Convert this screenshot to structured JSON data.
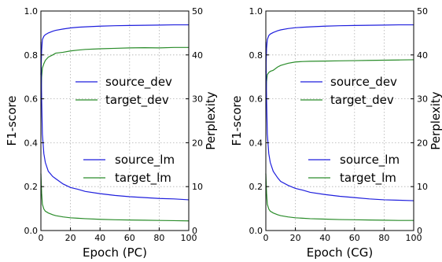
{
  "colors": {
    "blue": "#1f1fdd",
    "green": "#2a8c2a"
  },
  "chart_data": [
    {
      "type": "line",
      "xlabel": "Epoch (PC)",
      "ylabel_left": "F1-score",
      "ylabel_right": "Perplexity",
      "xlim": [
        0,
        100
      ],
      "ylim_left": [
        0.0,
        1.0
      ],
      "ylim_right": [
        0,
        50
      ],
      "x_ticks": [
        "0",
        "20",
        "40",
        "60",
        "80",
        "100"
      ],
      "y_left_ticks": [
        "0.0",
        "0.2",
        "0.4",
        "0.6",
        "0.8",
        "1.0"
      ],
      "y_right_ticks": [
        "0",
        "10",
        "20",
        "30",
        "40",
        "50"
      ],
      "grid": true,
      "legends": [
        {
          "placement": "upper-center",
          "entries": [
            "source_dev",
            "target_dev"
          ]
        },
        {
          "placement": "lower-center",
          "entries": [
            "source_lm",
            "target_lm"
          ]
        }
      ],
      "series": [
        {
          "name": "source_dev",
          "axis": "left",
          "color": "blue",
          "x": [
            0,
            0.5,
            1,
            2,
            3,
            5,
            8,
            10,
            15,
            20,
            25,
            30,
            40,
            50,
            60,
            70,
            80,
            90,
            100
          ],
          "y": [
            0.71,
            0.82,
            0.87,
            0.885,
            0.892,
            0.9,
            0.908,
            0.912,
            0.918,
            0.923,
            0.926,
            0.928,
            0.931,
            0.933,
            0.934,
            0.935,
            0.936,
            0.937,
            0.937
          ]
        },
        {
          "name": "target_dev",
          "axis": "left",
          "color": "green",
          "x": [
            0,
            0.5,
            1,
            2,
            3,
            5,
            8,
            10,
            15,
            20,
            25,
            30,
            40,
            50,
            60,
            70,
            80,
            90,
            100
          ],
          "y": [
            0.6,
            0.7,
            0.74,
            0.76,
            0.775,
            0.79,
            0.8,
            0.808,
            0.812,
            0.818,
            0.822,
            0.825,
            0.828,
            0.83,
            0.832,
            0.833,
            0.832,
            0.834,
            0.834
          ]
        },
        {
          "name": "source_lm",
          "axis": "right",
          "color": "blue",
          "x": [
            0,
            0.5,
            1,
            2,
            3,
            5,
            8,
            10,
            15,
            20,
            25,
            30,
            40,
            50,
            60,
            70,
            80,
            90,
            100
          ],
          "y": [
            43,
            30,
            22,
            17.5,
            15.5,
            13.5,
            12.3,
            11.8,
            10.6,
            9.8,
            9.4,
            8.9,
            8.4,
            8.0,
            7.7,
            7.5,
            7.3,
            7.2,
            7.0
          ]
        },
        {
          "name": "target_lm",
          "axis": "right",
          "color": "green",
          "x": [
            0,
            0.5,
            1,
            2,
            3,
            5,
            8,
            10,
            15,
            20,
            25,
            30,
            40,
            50,
            60,
            70,
            80,
            90,
            100
          ],
          "y": [
            13,
            8.5,
            6.0,
            4.9,
            4.4,
            4.0,
            3.6,
            3.4,
            3.1,
            2.9,
            2.8,
            2.7,
            2.55,
            2.45,
            2.4,
            2.35,
            2.3,
            2.25,
            2.2
          ]
        }
      ]
    },
    {
      "type": "line",
      "xlabel": "Epoch (CG)",
      "ylabel_left": "F1-score",
      "ylabel_right": "Perplexity",
      "xlim": [
        0,
        100
      ],
      "ylim_left": [
        0.0,
        1.0
      ],
      "ylim_right": [
        0,
        50
      ],
      "x_ticks": [
        "0",
        "20",
        "40",
        "60",
        "80",
        "100"
      ],
      "y_left_ticks": [
        "0.0",
        "0.2",
        "0.4",
        "0.6",
        "0.8",
        "1.0"
      ],
      "y_right_ticks": [
        "0",
        "10",
        "20",
        "30",
        "40",
        "50"
      ],
      "grid": true,
      "legends": [
        {
          "placement": "upper-center",
          "entries": [
            "source_dev",
            "target_dev"
          ]
        },
        {
          "placement": "lower-center",
          "entries": [
            "source_lm",
            "target_lm"
          ]
        }
      ],
      "series": [
        {
          "name": "source_dev",
          "axis": "left",
          "color": "blue",
          "x": [
            0,
            0.5,
            1,
            2,
            3,
            5,
            8,
            10,
            15,
            20,
            25,
            30,
            40,
            50,
            60,
            70,
            80,
            90,
            100
          ],
          "y": [
            0.72,
            0.83,
            0.87,
            0.888,
            0.895,
            0.902,
            0.91,
            0.914,
            0.92,
            0.924,
            0.926,
            0.928,
            0.931,
            0.933,
            0.934,
            0.935,
            0.936,
            0.937,
            0.937
          ]
        },
        {
          "name": "target_dev",
          "axis": "left",
          "color": "green",
          "x": [
            0,
            0.5,
            1,
            2,
            3,
            5,
            8,
            10,
            15,
            20,
            25,
            30,
            40,
            50,
            60,
            70,
            80,
            90,
            100
          ],
          "y": [
            0.6,
            0.68,
            0.71,
            0.72,
            0.725,
            0.73,
            0.745,
            0.752,
            0.762,
            0.768,
            0.77,
            0.771,
            0.772,
            0.773,
            0.774,
            0.775,
            0.776,
            0.777,
            0.778
          ]
        },
        {
          "name": "source_lm",
          "axis": "right",
          "color": "blue",
          "x": [
            0,
            0.5,
            1,
            2,
            3,
            5,
            8,
            10,
            15,
            20,
            25,
            30,
            40,
            50,
            60,
            70,
            80,
            90,
            100
          ],
          "y": [
            43,
            30,
            22,
            17.5,
            15.5,
            13.5,
            12.0,
            11.2,
            10.3,
            9.6,
            9.2,
            8.7,
            8.2,
            7.8,
            7.5,
            7.2,
            7.0,
            6.9,
            6.8
          ]
        },
        {
          "name": "target_lm",
          "axis": "right",
          "color": "green",
          "x": [
            0,
            0.5,
            1,
            2,
            3,
            5,
            8,
            10,
            15,
            20,
            25,
            30,
            40,
            50,
            60,
            70,
            80,
            90,
            100
          ],
          "y": [
            13,
            8.5,
            6.0,
            4.9,
            4.4,
            4.0,
            3.6,
            3.4,
            3.1,
            2.9,
            2.8,
            2.7,
            2.6,
            2.5,
            2.45,
            2.4,
            2.35,
            2.3,
            2.3
          ]
        }
      ]
    }
  ]
}
